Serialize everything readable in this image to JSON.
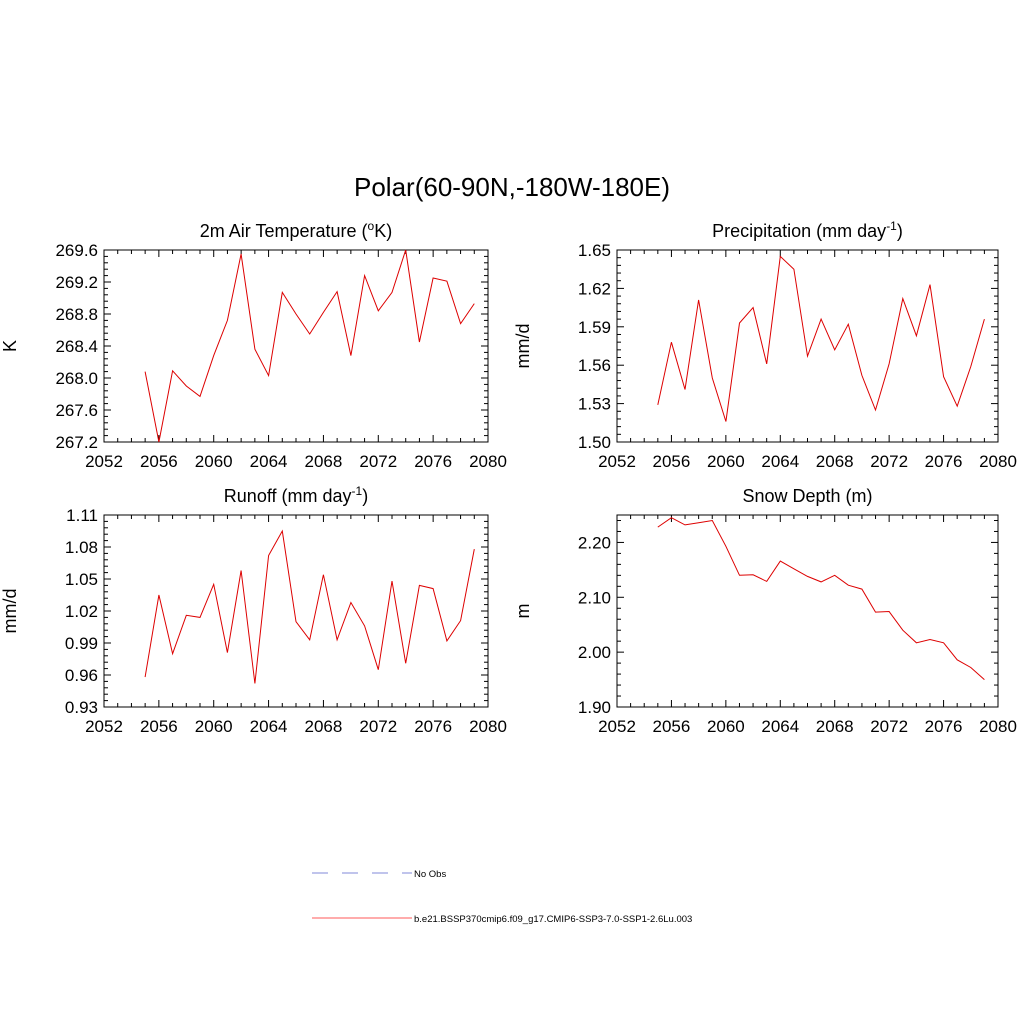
{
  "title": "Polar(60-90N,-180W-180E)",
  "chart_data": [
    {
      "type": "line",
      "title": "2m Air Temperature (",
      "title_super": "o",
      "title_tail": "K)",
      "ylabel": "K",
      "xlim": [
        2052,
        2080
      ],
      "xticks": [
        "2052",
        "2056",
        "2060",
        "2064",
        "2068",
        "2072",
        "2076",
        "2080"
      ],
      "ylim": [
        267.2,
        269.6
      ],
      "yticks": [
        "267.2",
        "267.6",
        "268.0",
        "268.4",
        "268.8",
        "269.2",
        "269.6"
      ],
      "x": [
        2055,
        2056,
        2057,
        2058,
        2059,
        2060,
        2061,
        2062,
        2063,
        2064,
        2065,
        2066,
        2067,
        2068,
        2069,
        2070,
        2071,
        2072,
        2073,
        2074,
        2075,
        2076,
        2077,
        2078,
        2079
      ],
      "values": [
        268.08,
        267.2,
        268.09,
        267.9,
        267.77,
        268.28,
        268.72,
        269.55,
        268.36,
        268.03,
        269.07,
        268.8,
        268.55,
        268.82,
        269.08,
        268.28,
        269.28,
        268.84,
        269.07,
        269.6,
        268.45,
        269.25,
        269.21,
        268.68,
        268.93
      ]
    },
    {
      "type": "line",
      "title": "Precipitation (mm day",
      "title_super": "-1",
      "title_tail": ")",
      "ylabel": "mm/d",
      "xlim": [
        2052,
        2080
      ],
      "xticks": [
        "2052",
        "2056",
        "2060",
        "2064",
        "2068",
        "2072",
        "2076",
        "2080"
      ],
      "ylim": [
        1.5,
        1.65
      ],
      "yticks": [
        "1.50",
        "1.53",
        "1.56",
        "1.59",
        "1.62",
        "1.65"
      ],
      "x": [
        2055,
        2056,
        2057,
        2058,
        2059,
        2060,
        2061,
        2062,
        2063,
        2064,
        2065,
        2066,
        2067,
        2068,
        2069,
        2070,
        2071,
        2072,
        2073,
        2074,
        2075,
        2076,
        2077,
        2078,
        2079
      ],
      "values": [
        1.529,
        1.578,
        1.541,
        1.611,
        1.55,
        1.516,
        1.593,
        1.605,
        1.561,
        1.645,
        1.635,
        1.567,
        1.596,
        1.572,
        1.592,
        1.552,
        1.525,
        1.561,
        1.612,
        1.583,
        1.623,
        1.551,
        1.528,
        1.559,
        1.596
      ]
    },
    {
      "type": "line",
      "title": "Runoff (mm day",
      "title_super": "-1",
      "title_tail": ")",
      "ylabel": "mm/d",
      "xlim": [
        2052,
        2080
      ],
      "xticks": [
        "2052",
        "2056",
        "2060",
        "2064",
        "2068",
        "2072",
        "2076",
        "2080"
      ],
      "ylim": [
        0.93,
        1.11
      ],
      "yticks": [
        "0.93",
        "0.96",
        "0.99",
        "1.02",
        "1.05",
        "1.08",
        "1.11"
      ],
      "x": [
        2055,
        2056,
        2057,
        2058,
        2059,
        2060,
        2061,
        2062,
        2063,
        2064,
        2065,
        2066,
        2067,
        2068,
        2069,
        2070,
        2071,
        2072,
        2073,
        2074,
        2075,
        2076,
        2077,
        2078,
        2079
      ],
      "values": [
        0.958,
        1.035,
        0.98,
        1.016,
        1.014,
        1.045,
        0.981,
        1.058,
        0.952,
        1.072,
        1.095,
        1.01,
        0.993,
        1.054,
        0.993,
        1.028,
        1.006,
        0.965,
        1.048,
        0.971,
        1.044,
        1.041,
        0.992,
        1.011,
        1.078
      ]
    },
    {
      "type": "line",
      "title": "Snow Depth (m)",
      "title_super": "",
      "title_tail": "",
      "ylabel": "m",
      "xlim": [
        2052,
        2080
      ],
      "xticks": [
        "2052",
        "2056",
        "2060",
        "2064",
        "2068",
        "2072",
        "2076",
        "2080"
      ],
      "ylim": [
        1.9,
        2.25
      ],
      "yticks": [
        "1.90",
        "2.00",
        "2.10",
        "2.20"
      ],
      "x": [
        2055,
        2056,
        2057,
        2058,
        2059,
        2060,
        2061,
        2062,
        2063,
        2064,
        2065,
        2066,
        2067,
        2068,
        2069,
        2070,
        2071,
        2072,
        2073,
        2074,
        2075,
        2076,
        2077,
        2078,
        2079
      ],
      "values": [
        2.228,
        2.245,
        2.232,
        2.236,
        2.24,
        2.193,
        2.14,
        2.141,
        2.129,
        2.166,
        2.152,
        2.138,
        2.128,
        2.14,
        2.122,
        2.115,
        2.073,
        2.074,
        2.04,
        2.017,
        2.023,
        2.017,
        1.986,
        1.972,
        1.95
      ]
    }
  ],
  "legend": [
    {
      "label": "No Obs",
      "color": "#9aa0e0",
      "dash": true
    },
    {
      "label": "b.e21.BSSP370cmip6.f09_g17.CMIP6-SSP3-7.0-SSP1-2.6Lu.003",
      "color": "#ff5a5a",
      "dash": false
    }
  ],
  "line_color": "#dd0000"
}
